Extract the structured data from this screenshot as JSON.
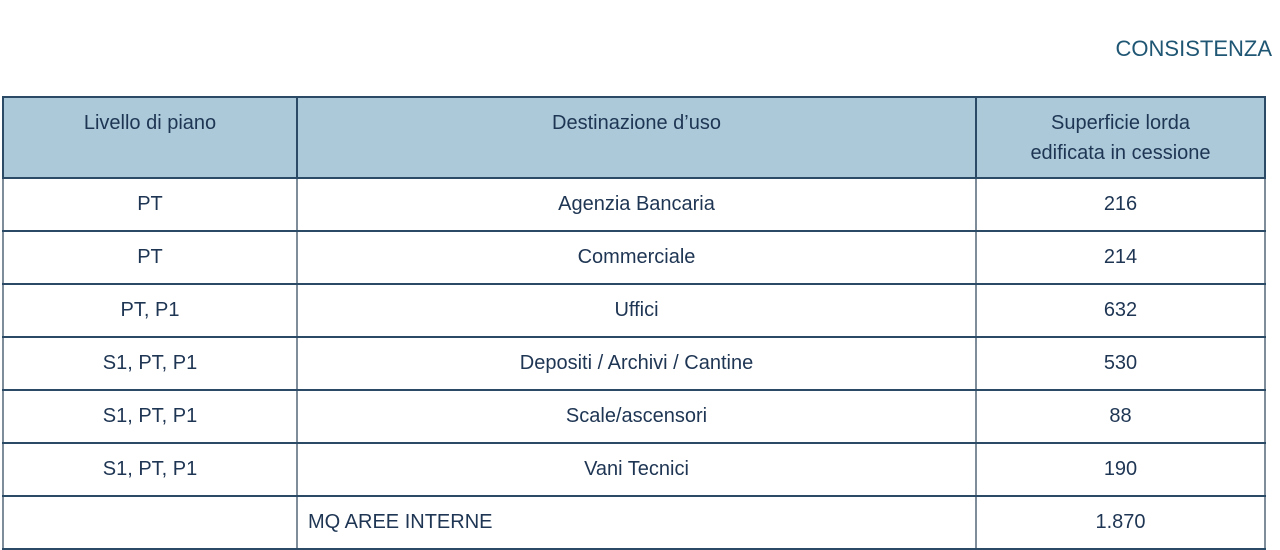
{
  "title": "CONSISTENZA",
  "table": {
    "headers": [
      "Livello di piano",
      "Destinazione d’uso",
      "Superficie lorda edificata in cessione"
    ],
    "rows": [
      [
        "PT",
        "Agenzia Bancaria",
        "216"
      ],
      [
        "PT",
        "Commerciale",
        "214"
      ],
      [
        "PT, P1",
        "Uffici",
        "632"
      ],
      [
        "S1, PT, P1",
        "Depositi / Archivi / Cantine",
        "530"
      ],
      [
        "S1, PT, P1",
        "Scale/ascensori",
        "88"
      ],
      [
        "S1, PT, P1",
        "Vani Tecnici",
        "190"
      ]
    ],
    "total": {
      "level": "",
      "label": "MQ AREE INTERNE",
      "value": "1.870"
    }
  },
  "colors": {
    "header_bg": "#abc9d9",
    "text": "#1e3553",
    "title": "#1f5673",
    "border": "#2b4a66"
  }
}
